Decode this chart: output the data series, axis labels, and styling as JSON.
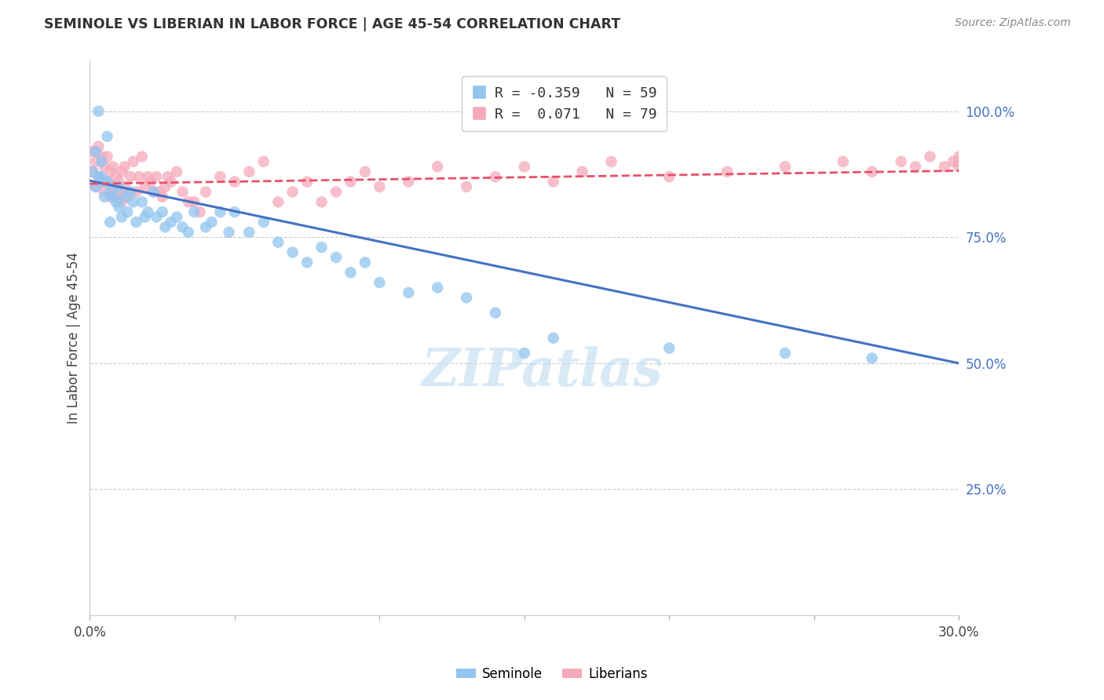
{
  "title": "SEMINOLE VS LIBERIAN IN LABOR FORCE | AGE 45-54 CORRELATION CHART",
  "source": "Source: ZipAtlas.com",
  "ylabel_label": "In Labor Force | Age 45-54",
  "x_min": 0.0,
  "x_max": 0.3,
  "y_min": 0.0,
  "y_max": 1.1,
  "x_ticks": [
    0.0,
    0.05,
    0.1,
    0.15,
    0.2,
    0.25,
    0.3
  ],
  "y_ticks": [
    0.25,
    0.5,
    0.75,
    1.0
  ],
  "y_tick_labels": [
    "25.0%",
    "50.0%",
    "75.0%",
    "100.0%"
  ],
  "seminole_color": "#92C5F0",
  "liberian_color": "#F5AABB",
  "trend_seminole_color": "#4472C4",
  "trend_liberian_color": "#E8506A",
  "seminole_x": [
    0.001,
    0.002,
    0.002,
    0.003,
    0.003,
    0.004,
    0.004,
    0.005,
    0.005,
    0.006,
    0.006,
    0.007,
    0.007,
    0.008,
    0.009,
    0.01,
    0.01,
    0.011,
    0.012,
    0.013,
    0.014,
    0.015,
    0.016,
    0.018,
    0.019,
    0.02,
    0.022,
    0.023,
    0.025,
    0.026,
    0.028,
    0.03,
    0.032,
    0.034,
    0.036,
    0.04,
    0.042,
    0.045,
    0.048,
    0.05,
    0.055,
    0.06,
    0.065,
    0.07,
    0.075,
    0.08,
    0.085,
    0.09,
    0.095,
    0.1,
    0.11,
    0.12,
    0.13,
    0.14,
    0.15,
    0.16,
    0.2,
    0.24,
    0.27
  ],
  "seminole_y": [
    0.88,
    0.85,
    0.92,
    0.87,
    1.0,
    0.9,
    0.87,
    0.83,
    0.86,
    0.95,
    0.86,
    0.84,
    0.78,
    0.83,
    0.82,
    0.85,
    0.81,
    0.79,
    0.83,
    0.8,
    0.84,
    0.82,
    0.78,
    0.82,
    0.79,
    0.8,
    0.84,
    0.79,
    0.8,
    0.77,
    0.78,
    0.79,
    0.77,
    0.76,
    0.8,
    0.77,
    0.78,
    0.8,
    0.76,
    0.8,
    0.76,
    0.78,
    0.74,
    0.72,
    0.7,
    0.73,
    0.71,
    0.68,
    0.7,
    0.66,
    0.64,
    0.65,
    0.63,
    0.6,
    0.52,
    0.55,
    0.53,
    0.52,
    0.51
  ],
  "liberian_x": [
    0.001,
    0.001,
    0.002,
    0.002,
    0.003,
    0.003,
    0.004,
    0.004,
    0.005,
    0.005,
    0.006,
    0.006,
    0.007,
    0.007,
    0.008,
    0.008,
    0.009,
    0.009,
    0.01,
    0.01,
    0.011,
    0.011,
    0.012,
    0.012,
    0.013,
    0.014,
    0.015,
    0.016,
    0.017,
    0.018,
    0.019,
    0.02,
    0.021,
    0.022,
    0.023,
    0.024,
    0.025,
    0.026,
    0.027,
    0.028,
    0.03,
    0.032,
    0.034,
    0.036,
    0.038,
    0.04,
    0.045,
    0.05,
    0.055,
    0.06,
    0.065,
    0.07,
    0.075,
    0.08,
    0.085,
    0.09,
    0.095,
    0.1,
    0.11,
    0.12,
    0.13,
    0.14,
    0.15,
    0.16,
    0.17,
    0.18,
    0.2,
    0.22,
    0.24,
    0.26,
    0.27,
    0.28,
    0.285,
    0.29,
    0.295,
    0.298,
    0.3,
    0.3,
    0.3
  ],
  "liberian_y": [
    0.88,
    0.92,
    0.85,
    0.9,
    0.87,
    0.93,
    0.86,
    0.91,
    0.84,
    0.89,
    0.86,
    0.91,
    0.88,
    0.83,
    0.89,
    0.85,
    0.87,
    0.83,
    0.86,
    0.84,
    0.88,
    0.82,
    0.85,
    0.89,
    0.83,
    0.87,
    0.9,
    0.84,
    0.87,
    0.91,
    0.85,
    0.87,
    0.86,
    0.84,
    0.87,
    0.84,
    0.83,
    0.85,
    0.87,
    0.86,
    0.88,
    0.84,
    0.82,
    0.82,
    0.8,
    0.84,
    0.87,
    0.86,
    0.88,
    0.9,
    0.82,
    0.84,
    0.86,
    0.82,
    0.84,
    0.86,
    0.88,
    0.85,
    0.86,
    0.89,
    0.85,
    0.87,
    0.89,
    0.86,
    0.88,
    0.9,
    0.87,
    0.88,
    0.89,
    0.9,
    0.88,
    0.9,
    0.89,
    0.91,
    0.89,
    0.9,
    0.89,
    0.9,
    0.91
  ],
  "trend_sem_x0": 0.0,
  "trend_sem_y0": 0.862,
  "trend_sem_x1": 0.3,
  "trend_sem_y1": 0.5,
  "trend_lib_x0": 0.0,
  "trend_lib_y0": 0.856,
  "trend_lib_x1": 0.3,
  "trend_lib_y1": 0.882,
  "watermark_text": "ZIPatlas",
  "watermark_color": "#B8D8F0",
  "legend_sem_label": "R = -0.359   N = 59",
  "legend_lib_label": "R =  0.071   N = 79"
}
